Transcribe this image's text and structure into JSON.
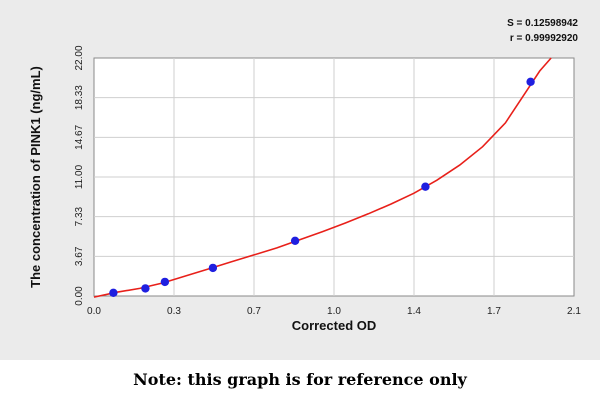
{
  "chart_data": {
    "type": "scatter",
    "xlabel": "Corrected OD",
    "ylabel": "The concentration of PINK1 (ng/mL)",
    "xlim": [
      0.0,
      2.1
    ],
    "ylim": [
      0.0,
      22.0
    ],
    "x_ticks": [
      "0.0",
      "0.3",
      "0.7",
      "1.0",
      "1.4",
      "1.7",
      "2.1"
    ],
    "y_ticks": [
      "0.00",
      "3.67",
      "7.33",
      "11.00",
      "14.67",
      "18.33",
      "22.00"
    ],
    "grid": true,
    "points": [
      {
        "x": 0.085,
        "y": 0.3
      },
      {
        "x": 0.225,
        "y": 0.7
      },
      {
        "x": 0.31,
        "y": 1.3
      },
      {
        "x": 0.52,
        "y": 2.6
      },
      {
        "x": 0.88,
        "y": 5.1
      },
      {
        "x": 1.45,
        "y": 10.1
      },
      {
        "x": 1.91,
        "y": 19.8
      }
    ],
    "fit_curve": {
      "x": [
        0.0,
        0.1,
        0.2,
        0.3,
        0.4,
        0.5,
        0.6,
        0.7,
        0.8,
        0.9,
        1.0,
        1.1,
        1.2,
        1.3,
        1.4,
        1.5,
        1.6,
        1.7,
        1.8,
        1.9,
        1.95,
        2.0
      ],
      "y": [
        -0.1,
        0.35,
        0.7,
        1.2,
        1.85,
        2.5,
        3.15,
        3.8,
        4.45,
        5.2,
        5.95,
        6.75,
        7.6,
        8.5,
        9.5,
        10.7,
        12.1,
        13.8,
        16.0,
        19.2,
        20.8,
        22.0
      ]
    },
    "stats": {
      "S": "S = 0.12598942",
      "r": "r = 0.99992920"
    },
    "colors": {
      "curve": "#e8201a",
      "point": "#1f1fe0",
      "grid": "#cfcfcf",
      "plot_bg": "#ffffff",
      "figure_bg": "#ebebeb"
    }
  },
  "note": "Note: this graph is for reference only"
}
